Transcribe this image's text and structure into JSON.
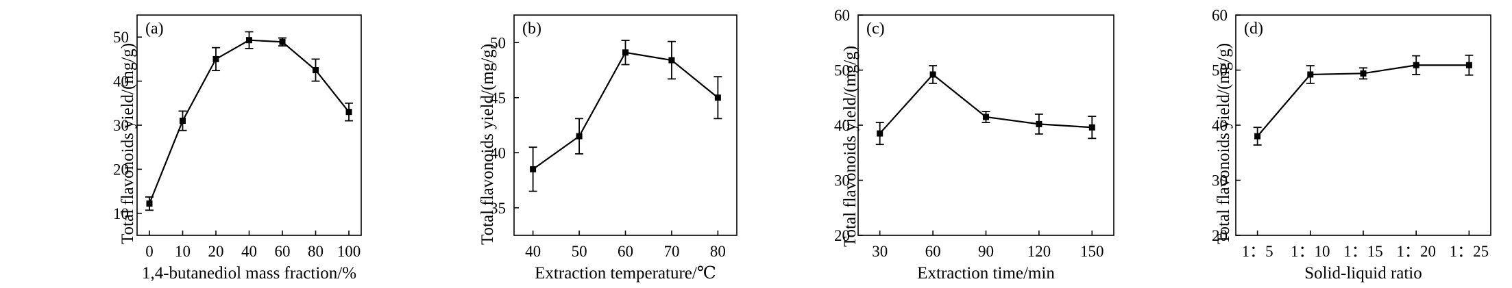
{
  "colors": {
    "line": "#000000",
    "background": "#ffffff"
  },
  "chart_data": [
    {
      "type": "line",
      "panel_label": "(a)",
      "xlabel": "1,4-butanediol mass fraction/%",
      "ylabel": "Total flavonoids yield/(mg/g)",
      "categories": [
        "0",
        "10",
        "20",
        "40",
        "60",
        "80",
        "100"
      ],
      "values": [
        12.2,
        31.0,
        45.0,
        49.3,
        48.9,
        42.5,
        33.0
      ],
      "errors": [
        1.5,
        2.2,
        2.6,
        1.9,
        0.9,
        2.5,
        2.0
      ],
      "ylim": [
        5,
        55
      ],
      "yticks": [
        10,
        20,
        30,
        40,
        50
      ],
      "ytick_labels": [
        "10",
        "20",
        "30",
        "40",
        "50"
      ]
    },
    {
      "type": "line",
      "panel_label": "(b)",
      "xlabel": "Extraction temperature/℃",
      "ylabel": "Total flavonoids yield/(mg/g)",
      "categories": [
        "40",
        "50",
        "60",
        "70",
        "80"
      ],
      "values": [
        38.5,
        41.5,
        49.1,
        48.4,
        45.0
      ],
      "errors": [
        2.0,
        1.6,
        1.1,
        1.7,
        1.9
      ],
      "ylim": [
        32.5,
        52.5
      ],
      "yticks": [
        35,
        40,
        45,
        50
      ],
      "ytick_labels": [
        "35",
        "40",
        "45",
        "50"
      ]
    },
    {
      "type": "line",
      "panel_label": "(c)",
      "xlabel": "Extraction time/min",
      "ylabel": "Total flavonoids yield/(mg/g)",
      "categories": [
        "30",
        "60",
        "90",
        "120",
        "150"
      ],
      "values": [
        38.5,
        49.2,
        41.5,
        40.2,
        39.6
      ],
      "errors": [
        2.0,
        1.6,
        1.0,
        1.8,
        2.0
      ],
      "ylim": [
        20,
        60
      ],
      "yticks": [
        20,
        30,
        40,
        50,
        60
      ],
      "ytick_labels": [
        "20",
        "30",
        "40",
        "50",
        "60"
      ]
    },
    {
      "type": "line",
      "panel_label": "(d)",
      "xlabel": "Solid-liquid ratio",
      "ylabel": "Total flavonoids yield/(mg/g)",
      "categories": [
        "1：5",
        "1：10",
        "1：15",
        "1：20",
        "1：25"
      ],
      "values": [
        38.0,
        49.2,
        49.4,
        50.9,
        50.9
      ],
      "errors": [
        1.6,
        1.6,
        1.0,
        1.7,
        1.8
      ],
      "ylim": [
        20,
        60
      ],
      "yticks": [
        20,
        30,
        40,
        50,
        60
      ],
      "ytick_labels": [
        "20",
        "30",
        "40",
        "50",
        "60"
      ]
    }
  ]
}
